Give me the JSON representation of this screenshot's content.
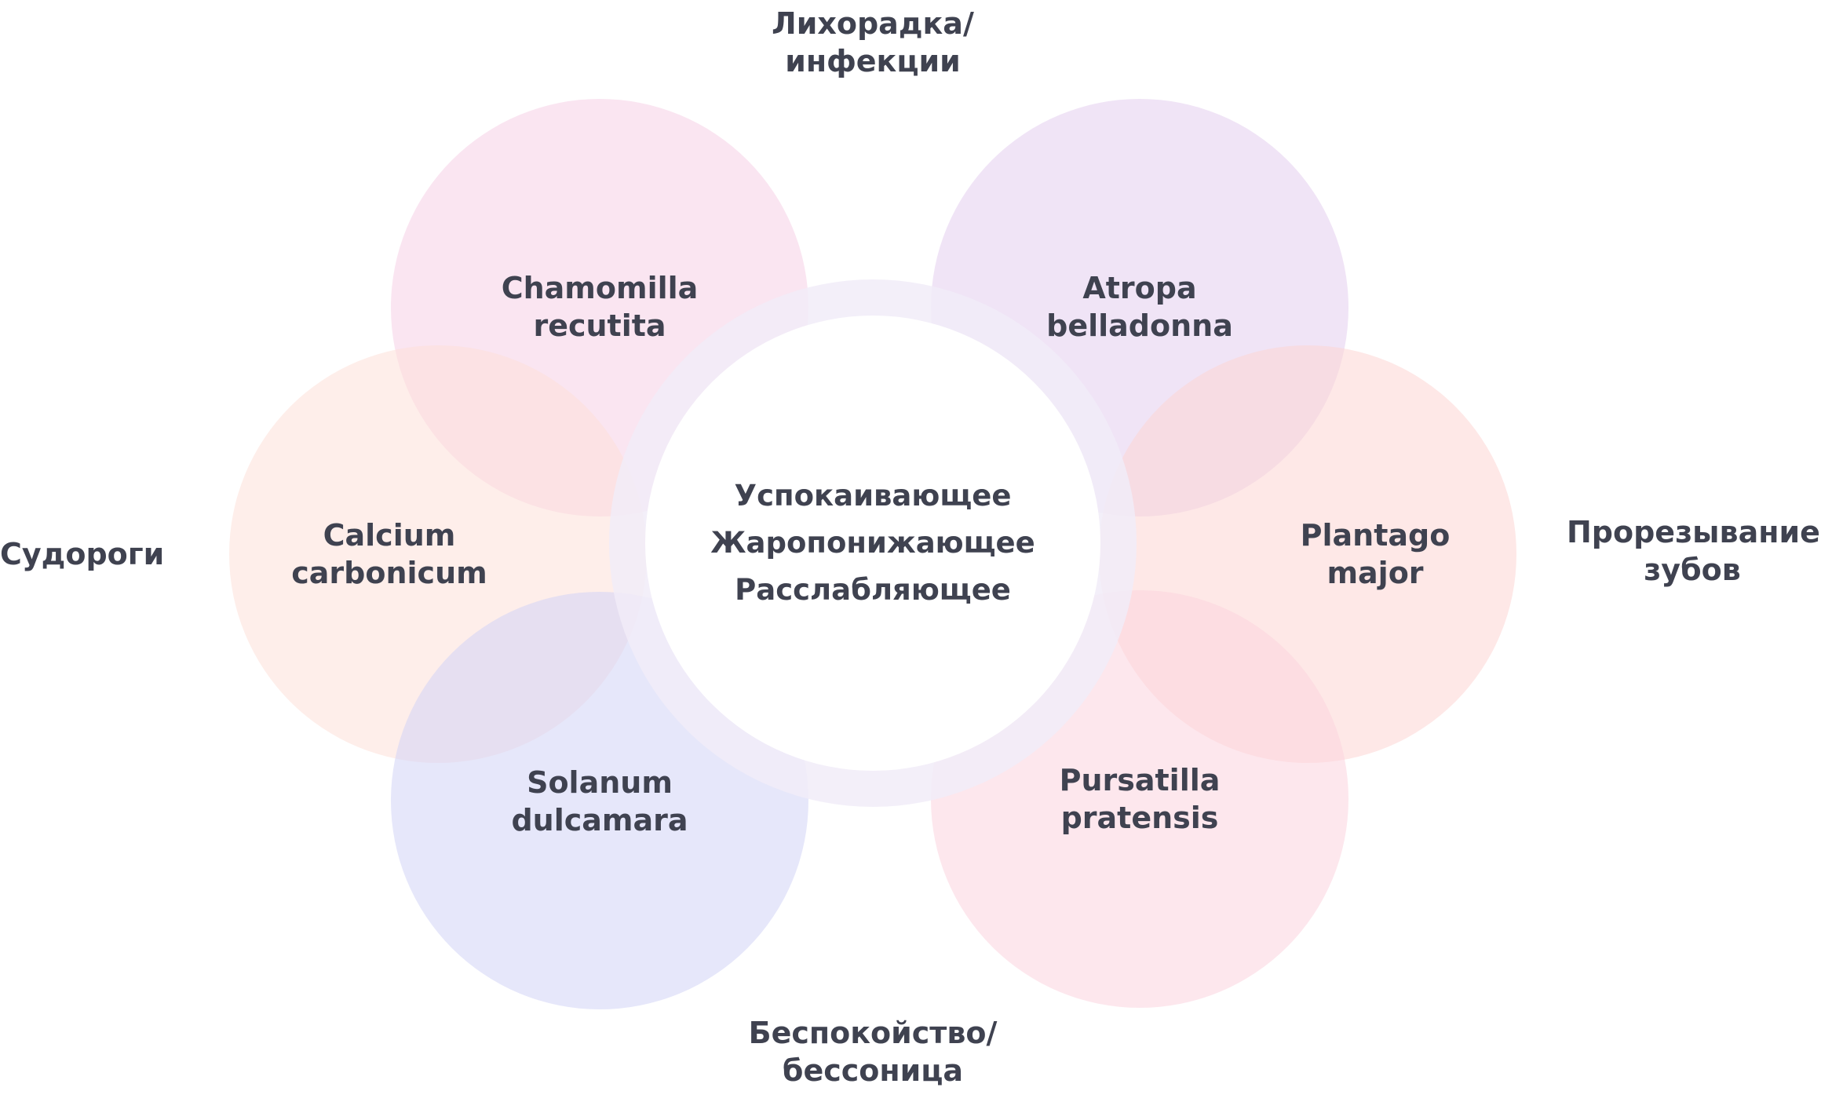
{
  "center": {
    "lines": [
      "Успокаивающее",
      "Жаропонижающее",
      "Расслабляющее"
    ]
  },
  "remedies": [
    {
      "id": "chamomilla",
      "line1": "Chamomilla",
      "line2": "recutita",
      "color": "#f5cfe6"
    },
    {
      "id": "atropa",
      "line1": "Atropa",
      "line2": "belladonna",
      "color": "#e4cdee"
    },
    {
      "id": "calcium",
      "line1": "Calcium",
      "line2": "carbonicum",
      "color": "#fde0d9"
    },
    {
      "id": "plantago",
      "line1": "Plantago",
      "line2": "major",
      "color": "#fdd5d4"
    },
    {
      "id": "solanum",
      "line1": "Solanum",
      "line2": "dulcamara",
      "color": "#d1d3f6"
    },
    {
      "id": "pursatilla",
      "line1": "Pursatilla",
      "line2": "pratensis",
      "color": "#fbd3de"
    }
  ],
  "outer_labels": {
    "top": [
      "Лихорадка/",
      "инфекции"
    ],
    "left": [
      "Судороги"
    ],
    "right": [
      "Прорезывание",
      "зубов"
    ],
    "bottom": [
      "Беспокойство/",
      "бессоница"
    ]
  },
  "colors": {
    "text": "#3f4250",
    "ring": "#f1ecf8",
    "center": "#ffffff"
  }
}
